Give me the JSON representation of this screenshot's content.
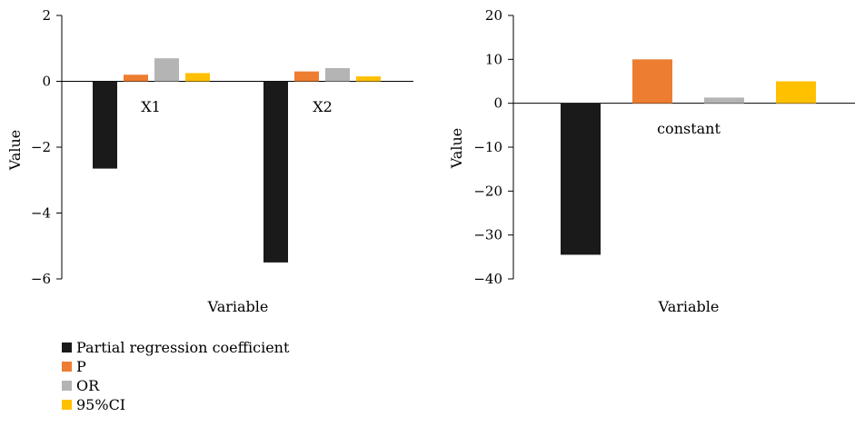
{
  "colors": {
    "Partial regression coefficient": "#1a1a1a",
    "P": "#ed7d31",
    "OR": "#b4b4b4",
    "95%CI": "#ffc000"
  },
  "legend": [
    "Partial regression coefficient",
    "P",
    "OR",
    "95%CI"
  ],
  "chart_data": [
    {
      "type": "bar",
      "title": "",
      "xlabel": "Variable",
      "ylabel": "Value",
      "ylim": [
        -6,
        2
      ],
      "yticks": [
        2,
        0,
        -2,
        -4,
        -6
      ],
      "ytick_labels": [
        "2",
        "0",
        "−2",
        "−4",
        "−6"
      ],
      "categories": [
        "X1",
        "X2"
      ],
      "series": [
        {
          "name": "Partial regression coefficient",
          "values": [
            -2.65,
            -5.5
          ]
        },
        {
          "name": "P",
          "values": [
            0.2,
            0.3
          ]
        },
        {
          "name": "OR",
          "values": [
            0.7,
            0.4
          ]
        },
        {
          "name": "95%CI",
          "values": [
            0.25,
            0.15
          ]
        }
      ]
    },
    {
      "type": "bar",
      "title": "",
      "xlabel": "Variable",
      "ylabel": "Value",
      "ylim": [
        -40,
        20
      ],
      "yticks": [
        20,
        10,
        0,
        -10,
        -20,
        -30,
        -40
      ],
      "ytick_labels": [
        "20",
        "10",
        "0",
        "−10",
        "−20",
        "−30",
        "−40"
      ],
      "categories": [
        "constant"
      ],
      "series": [
        {
          "name": "Partial regression coefficient",
          "values": [
            -34.5
          ]
        },
        {
          "name": "P",
          "values": [
            10
          ]
        },
        {
          "name": "OR",
          "values": [
            1.3
          ]
        },
        {
          "name": "95%CI",
          "values": [
            5
          ]
        }
      ]
    }
  ]
}
